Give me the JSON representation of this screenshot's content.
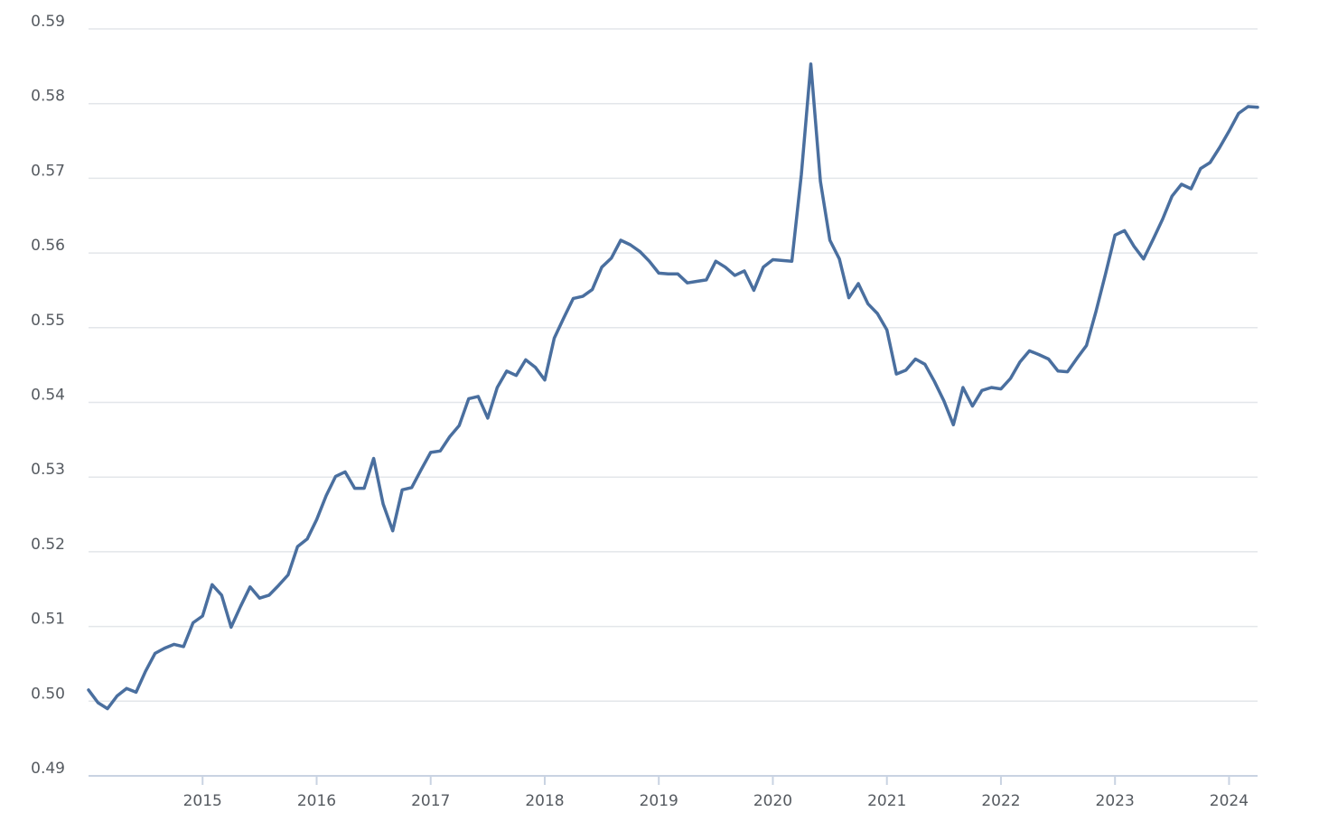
{
  "chart_data": {
    "type": "line",
    "title": "",
    "xlabel": "",
    "ylabel": "",
    "ylim": [
      0.49,
      0.59
    ],
    "xlim": [
      "2014-01",
      "2024-04"
    ],
    "grid": true,
    "legend": "none",
    "line_color": "#4a6f9f",
    "grid_color": "#e3e6ea",
    "y_ticks": [
      "0.49",
      "0.50",
      "0.51",
      "0.52",
      "0.53",
      "0.54",
      "0.55",
      "0.56",
      "0.57",
      "0.58",
      "0.59"
    ],
    "x_ticks": [
      "2015",
      "2016",
      "2017",
      "2018",
      "2019",
      "2020",
      "2021",
      "2022",
      "2023",
      "2024"
    ],
    "series": [
      {
        "x": [
          "2014-01",
          "2014-02",
          "2014-03",
          "2014-04",
          "2014-05",
          "2014-06",
          "2014-07",
          "2014-08",
          "2014-09",
          "2014-10",
          "2014-11",
          "2014-12",
          "2015-01",
          "2015-02",
          "2015-03",
          "2015-04",
          "2015-05",
          "2015-06",
          "2015-07",
          "2015-08",
          "2015-09",
          "2015-10",
          "2015-11",
          "2015-12",
          "2016-01",
          "2016-02",
          "2016-03",
          "2016-04",
          "2016-05",
          "2016-06",
          "2016-07",
          "2016-08",
          "2016-09",
          "2016-10",
          "2016-11",
          "2016-12",
          "2017-01",
          "2017-02",
          "2017-03",
          "2017-04",
          "2017-05",
          "2017-06",
          "2017-07",
          "2017-08",
          "2017-09",
          "2017-10",
          "2017-11",
          "2017-12",
          "2018-01",
          "2018-02",
          "2018-03",
          "2018-04",
          "2018-05",
          "2018-06",
          "2018-07",
          "2018-08",
          "2018-09",
          "2018-10",
          "2018-11",
          "2018-12",
          "2019-01",
          "2019-02",
          "2019-03",
          "2019-04",
          "2019-05",
          "2019-06",
          "2019-07",
          "2019-08",
          "2019-09",
          "2019-10",
          "2019-11",
          "2019-12",
          "2020-01",
          "2020-02",
          "2020-03",
          "2020-04",
          "2020-05",
          "2020-06",
          "2020-07",
          "2020-08",
          "2020-09",
          "2020-10",
          "2020-11",
          "2020-12",
          "2021-01",
          "2021-02",
          "2021-03",
          "2021-04",
          "2021-05",
          "2021-06",
          "2021-07",
          "2021-08",
          "2021-09",
          "2021-10",
          "2021-11",
          "2021-12",
          "2022-01",
          "2022-02",
          "2022-03",
          "2022-04",
          "2022-05",
          "2022-06",
          "2022-07",
          "2022-08",
          "2022-09",
          "2022-10",
          "2022-11",
          "2022-12",
          "2023-01",
          "2023-02",
          "2023-03",
          "2023-04",
          "2023-05",
          "2023-06",
          "2023-07",
          "2023-08",
          "2023-09",
          "2023-10",
          "2023-11",
          "2023-12",
          "2024-01",
          "2024-02",
          "2024-03",
          "2024-04"
        ],
        "values": [
          0.5015,
          0.4998,
          0.499,
          0.5007,
          0.5017,
          0.5012,
          0.504,
          0.5064,
          0.5071,
          0.5076,
          0.5073,
          0.5105,
          0.5114,
          0.5156,
          0.5142,
          0.5099,
          0.5127,
          0.5153,
          0.5138,
          0.5142,
          0.5155,
          0.5169,
          0.5207,
          0.5217,
          0.5243,
          0.5275,
          0.5301,
          0.5307,
          0.5285,
          0.5285,
          0.5325,
          0.5264,
          0.5228,
          0.5283,
          0.5286,
          0.531,
          0.5333,
          0.5335,
          0.5354,
          0.5369,
          0.5405,
          0.5408,
          0.5379,
          0.542,
          0.5442,
          0.5436,
          0.5457,
          0.5447,
          0.543,
          0.5486,
          0.5513,
          0.5539,
          0.5542,
          0.5551,
          0.5581,
          0.5593,
          0.5617,
          0.5611,
          0.5602,
          0.5589,
          0.5573,
          0.5572,
          0.5572,
          0.556,
          0.5562,
          0.5564,
          0.5589,
          0.5581,
          0.557,
          0.5576,
          0.555,
          0.5581,
          0.5591,
          0.559,
          0.5589,
          0.5705,
          0.5853,
          0.5696,
          0.5617,
          0.5592,
          0.554,
          0.5559,
          0.5532,
          0.5519,
          0.5497,
          0.5438,
          0.5443,
          0.5458,
          0.5451,
          0.5428,
          0.5402,
          0.537,
          0.542,
          0.5395,
          0.5416,
          0.542,
          0.5418,
          0.5432,
          0.5454,
          0.5469,
          0.5464,
          0.5458,
          0.5442,
          0.5441,
          0.5459,
          0.5476,
          0.5522,
          0.5572,
          0.5624,
          0.563,
          0.5609,
          0.5592,
          0.5618,
          0.5645,
          0.5676,
          0.5692,
          0.5686,
          0.5713,
          0.5721,
          0.5741,
          0.5763,
          0.5787,
          0.5796,
          0.5795
        ]
      }
    ]
  }
}
